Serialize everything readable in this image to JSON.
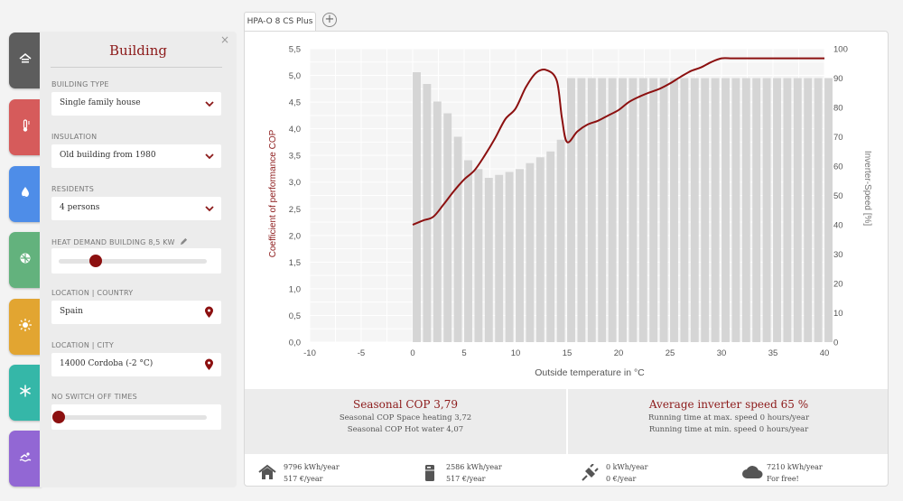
{
  "sidebar_tabs": [
    {
      "name": "tab-building",
      "icon": "house-icon",
      "color": "#5d5d5d"
    },
    {
      "name": "tab-heating",
      "icon": "thermometer-icon",
      "color": "#d65b5b"
    },
    {
      "name": "tab-hot-water",
      "icon": "water-drop-icon",
      "color": "#4e8de8"
    },
    {
      "name": "tab-heat-source",
      "icon": "heat-source-icon",
      "color": "#63b27d"
    },
    {
      "name": "tab-summer",
      "icon": "sun-icon",
      "color": "#e2a531"
    },
    {
      "name": "tab-cooling",
      "icon": "snowflake-icon",
      "color": "#35b7a8"
    },
    {
      "name": "tab-pool",
      "icon": "pool-icon",
      "color": "#9267d4"
    }
  ],
  "panel": {
    "title": "Building",
    "close": "×",
    "building_type": {
      "label": "BUILDING TYPE",
      "value": "Single family house"
    },
    "insulation": {
      "label": "INSULATION",
      "value": "Old building from 1980"
    },
    "residents": {
      "label": "RESIDENTS",
      "value": "4 persons"
    },
    "heat_demand": {
      "label": "HEAT DEMAND BUILDING 8,5 KW",
      "slider_fraction": 0.25
    },
    "country": {
      "label": "LOCATION | COUNTRY",
      "value": "Spain"
    },
    "city": {
      "label": "LOCATION | CITY",
      "value": "14000 Cordoba (-2 °C)"
    },
    "no_switch_off": {
      "label": "NO SWITCH OFF TIMES",
      "slider_fraction": 0.0
    }
  },
  "doc_tab": {
    "label": "HPA-O 8 CS Plus",
    "add": "+"
  },
  "accent": "#8c1a1a",
  "chart_data": {
    "type": "bar",
    "xlabel": "Outside temperature in °C",
    "ylabel": "Coefficient of performance COP",
    "y2label": "Inverter-Speed [%]",
    "xlim": [
      -10,
      40
    ],
    "ylim": [
      0,
      5.5
    ],
    "y2lim": [
      0,
      100
    ],
    "x_ticks": [
      "-10",
      "-5",
      "0",
      "5",
      "10",
      "15",
      "20",
      "25",
      "30",
      "35",
      "40"
    ],
    "y_ticks": [
      "0,0",
      "0,5",
      "1,0",
      "1,5",
      "2,0",
      "2,5",
      "3,0",
      "3,5",
      "4,0",
      "4,5",
      "5,0",
      "5,5"
    ],
    "y2_ticks": [
      "0",
      "10",
      "20",
      "30",
      "40",
      "50",
      "60",
      "70",
      "80",
      "90",
      "100"
    ],
    "series": [
      {
        "type": "bar",
        "axis": "right",
        "x": [
          0,
          1,
          2,
          3,
          4,
          5,
          6,
          7,
          8,
          9,
          10,
          11,
          12,
          13,
          14,
          15,
          16,
          17,
          18,
          19,
          20,
          21,
          22,
          23,
          24,
          25,
          26,
          27,
          28,
          29,
          30,
          31,
          32,
          33,
          34,
          35,
          36,
          37,
          38,
          39,
          40
        ],
        "values": [
          92,
          88,
          82,
          78,
          70,
          62,
          59,
          56,
          57,
          58,
          59,
          61,
          63,
          65,
          69,
          90,
          90,
          90,
          90,
          90,
          90,
          90,
          90,
          90,
          90,
          90,
          90,
          90,
          90,
          90,
          90,
          90,
          90,
          90,
          90,
          90,
          90,
          90,
          90,
          90,
          90
        ]
      },
      {
        "type": "line",
        "axis": "left",
        "x": [
          0,
          1,
          2,
          3,
          4,
          5,
          6,
          7,
          8,
          9,
          10,
          11,
          12,
          13,
          14,
          14.5,
          15,
          16,
          17,
          18,
          19,
          20,
          21,
          22,
          23,
          24,
          25,
          26,
          27,
          28,
          29,
          30,
          31,
          32,
          33,
          34,
          35,
          36,
          37,
          38,
          39,
          40
        ],
        "values": [
          2.2,
          2.28,
          2.35,
          2.58,
          2.83,
          3.05,
          3.22,
          3.5,
          3.82,
          4.18,
          4.38,
          4.78,
          5.05,
          5.1,
          4.9,
          4.2,
          3.75,
          3.95,
          4.08,
          4.15,
          4.25,
          4.35,
          4.5,
          4.6,
          4.68,
          4.75,
          4.85,
          4.97,
          5.08,
          5.15,
          5.25,
          5.32,
          5.32,
          5.32,
          5.32,
          5.32,
          5.32,
          5.32,
          5.32,
          5.32,
          5.32,
          5.32
        ]
      }
    ]
  },
  "summary": {
    "cop": {
      "title": "Seasonal COP 3,79",
      "line1": "Seasonal COP Space heating 3,72",
      "line2": "Seasonal COP Hot water 4,07"
    },
    "inverter": {
      "title": "Average inverter speed 65 %",
      "line1": "Running time at max. speed 0 hours/year",
      "line2": "Running time at min. speed 0 hours/year"
    }
  },
  "footer": [
    {
      "name": "footer-heat",
      "icon": "house-icon",
      "line1": "9796 kWh/year",
      "line2": "517 €/year"
    },
    {
      "name": "footer-appliance",
      "icon": "appliance-icon",
      "line1": "2586 kWh/year",
      "line2": "517 €/year"
    },
    {
      "name": "footer-electric",
      "icon": "plug-icon",
      "line1": "0 kWh/year",
      "line2": "0 €/year"
    },
    {
      "name": "footer-environment",
      "icon": "cloud-icon",
      "line1": "7210 kWh/year",
      "line2": "For free!"
    }
  ]
}
